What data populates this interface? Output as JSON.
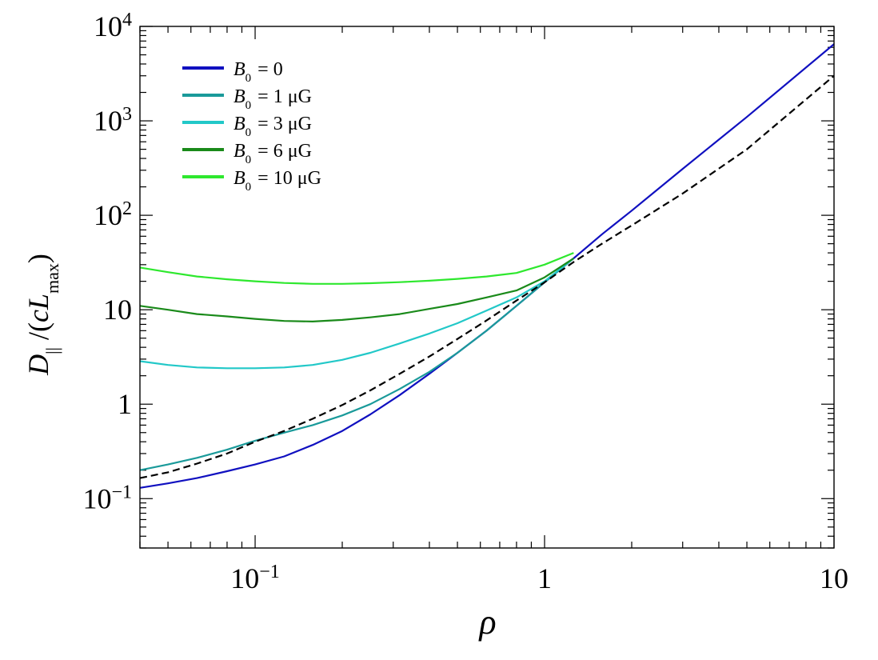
{
  "chart_data": {
    "type": "line",
    "xscale": "log",
    "yscale": "log",
    "xlim": [
      0.04,
      10
    ],
    "ylim": [
      0.03,
      10000
    ],
    "xlabel": "ρ",
    "ylabel": {
      "main": "D",
      "sub1": "||",
      "mid": " /(",
      "c": "c",
      "L": "L",
      "sub2": "max",
      "end": ")"
    },
    "x_ticks": [
      {
        "value": 0.1,
        "base": "10",
        "exp": "−1",
        "plain": ""
      },
      {
        "value": 1,
        "base": "",
        "exp": "",
        "plain": "1"
      },
      {
        "value": 10,
        "base": "",
        "exp": "",
        "plain": "10"
      }
    ],
    "y_ticks": [
      {
        "value": 0.1,
        "base": "10",
        "exp": "−1",
        "plain": ""
      },
      {
        "value": 1,
        "base": "",
        "exp": "",
        "plain": "1"
      },
      {
        "value": 10,
        "base": "",
        "exp": "",
        "plain": "10"
      },
      {
        "value": 100,
        "base": "10",
        "exp": "2",
        "plain": ""
      },
      {
        "value": 1000,
        "base": "10",
        "exp": "3",
        "plain": ""
      },
      {
        "value": 10000,
        "base": "10",
        "exp": "4",
        "plain": ""
      }
    ],
    "legend_position": "top-left",
    "series": [
      {
        "name": "B0 = 0",
        "legend": {
          "b": "B",
          "sub": "0",
          "rest": " = 0"
        },
        "color": "#1010c0",
        "dashed": false,
        "x": [
          0.04,
          0.05,
          0.063,
          0.08,
          0.1,
          0.126,
          0.158,
          0.2,
          0.25,
          0.316,
          0.4,
          0.5,
          0.63,
          0.8,
          1.0,
          1.26,
          1.58,
          2,
          3,
          5,
          10
        ],
        "y": [
          0.13,
          0.145,
          0.165,
          0.195,
          0.23,
          0.28,
          0.37,
          0.52,
          0.78,
          1.25,
          2.1,
          3.5,
          6.0,
          11.0,
          19.5,
          35,
          63,
          112,
          310,
          1100,
          6500
        ]
      },
      {
        "name": "B0 = 1 μG",
        "legend": {
          "b": "B",
          "sub": "0",
          "rest": " = 1 μG"
        },
        "color": "#1a9a9a",
        "dashed": false,
        "x": [
          0.04,
          0.05,
          0.063,
          0.08,
          0.1,
          0.126,
          0.158,
          0.2,
          0.25,
          0.316,
          0.4,
          0.5,
          0.63,
          0.8,
          1.0,
          1.26
        ],
        "y": [
          0.2,
          0.23,
          0.27,
          0.33,
          0.41,
          0.5,
          0.6,
          0.76,
          1.0,
          1.45,
          2.2,
          3.5,
          6.0,
          11.0,
          19.5,
          35
        ]
      },
      {
        "name": "B0 = 3 μG",
        "legend": {
          "b": "B",
          "sub": "0",
          "rest": " = 3 μG"
        },
        "color": "#22c8c8",
        "dashed": false,
        "x": [
          0.04,
          0.05,
          0.063,
          0.08,
          0.1,
          0.126,
          0.158,
          0.2,
          0.25,
          0.316,
          0.4,
          0.5,
          0.63,
          0.8,
          1.0,
          1.26
        ],
        "y": [
          2.85,
          2.6,
          2.45,
          2.4,
          2.4,
          2.45,
          2.6,
          2.95,
          3.5,
          4.4,
          5.6,
          7.2,
          9.8,
          13.5,
          20,
          35
        ]
      },
      {
        "name": "B0 = 6 μG",
        "legend": {
          "b": "B",
          "sub": "0",
          "rest": " = 6 μG"
        },
        "color": "#1a8a1a",
        "dashed": false,
        "x": [
          0.04,
          0.05,
          0.063,
          0.08,
          0.1,
          0.126,
          0.158,
          0.2,
          0.25,
          0.316,
          0.4,
          0.5,
          0.63,
          0.8,
          1.0,
          1.26
        ],
        "y": [
          11.0,
          10.0,
          9.0,
          8.5,
          8.0,
          7.6,
          7.5,
          7.8,
          8.3,
          9.0,
          10.2,
          11.5,
          13.5,
          16.0,
          22,
          35
        ]
      },
      {
        "name": "B0 = 10 μG",
        "legend": {
          "b": "B",
          "sub": "0",
          "rest": " = 10 μG"
        },
        "color": "#2ee82e",
        "dashed": false,
        "x": [
          0.04,
          0.05,
          0.063,
          0.08,
          0.1,
          0.126,
          0.158,
          0.2,
          0.25,
          0.316,
          0.4,
          0.5,
          0.63,
          0.8,
          1.0,
          1.26
        ],
        "y": [
          28,
          25,
          22.5,
          21,
          20,
          19.2,
          18.8,
          18.8,
          19.1,
          19.6,
          20.3,
          21.2,
          22.5,
          24.5,
          30,
          40
        ]
      },
      {
        "name": "",
        "legend": null,
        "color": "#000000",
        "dashed": true,
        "x": [
          0.04,
          0.05,
          0.063,
          0.08,
          0.1,
          0.126,
          0.158,
          0.2,
          0.25,
          0.316,
          0.4,
          0.5,
          0.63,
          0.8,
          1.0,
          1.26,
          1.58,
          2,
          3,
          5,
          10
        ],
        "y": [
          0.165,
          0.19,
          0.235,
          0.3,
          0.4,
          0.52,
          0.7,
          0.98,
          1.4,
          2.1,
          3.2,
          4.9,
          7.7,
          12.5,
          19.5,
          32,
          50,
          78,
          170,
          500,
          3000
        ]
      }
    ]
  }
}
